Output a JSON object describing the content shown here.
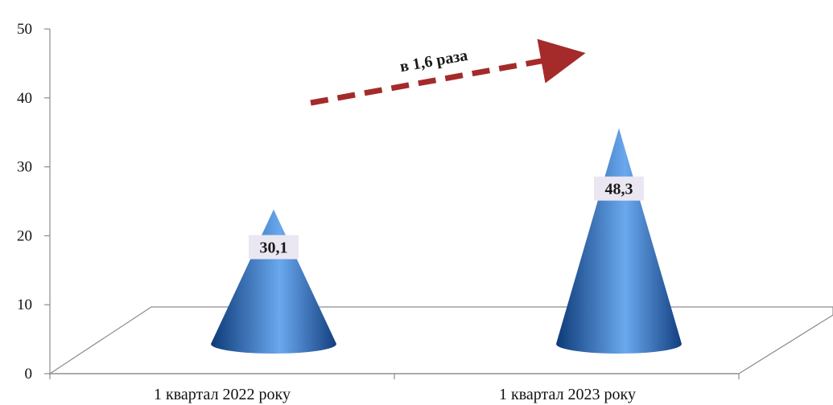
{
  "chart_data": {
    "type": "bar",
    "shape": "cone",
    "categories": [
      "1 квартал 2022 року",
      "1 квартал 2023 року"
    ],
    "values": [
      30.1,
      48.3
    ],
    "data_labels": [
      "30,1",
      "48,3"
    ],
    "ylim": [
      0,
      50
    ],
    "yticks": [
      0,
      10,
      20,
      30,
      40,
      50
    ],
    "grid": false,
    "legend": "none",
    "annotation": {
      "text": "в 1,6 раза"
    },
    "colors": {
      "cone_dark": "#0d3a78",
      "cone_mid": "#2a6fc4",
      "cone_light": "#6aa8ee",
      "arrow": "#a52a2a",
      "label_bg": "#ebe7f2",
      "axis": "#8c8c8c"
    }
  }
}
